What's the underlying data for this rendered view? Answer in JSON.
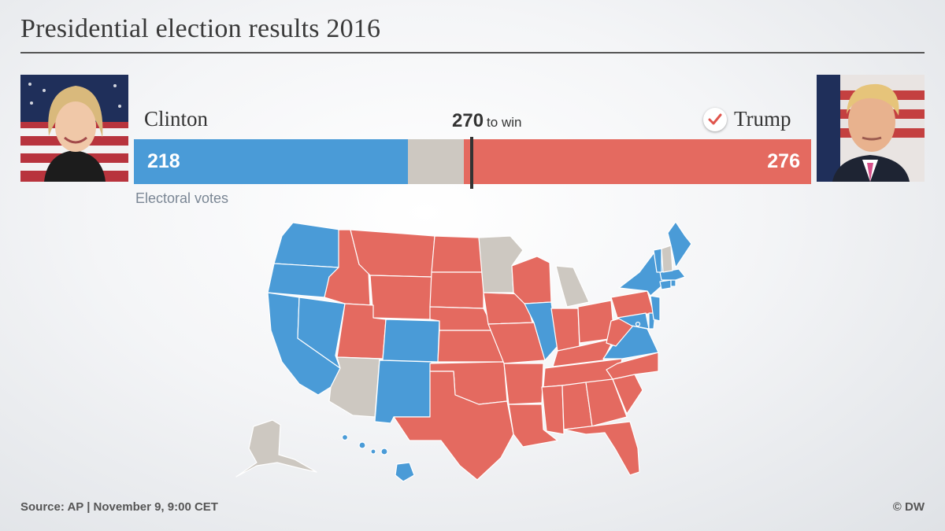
{
  "title": "Presidential election results 2016",
  "colors": {
    "democrat": "#4a9bd7",
    "republican": "#e46a60",
    "undecided": "#cdc8c1",
    "winner_check": "#e0554d"
  },
  "candidates": {
    "left": {
      "name": "Clinton",
      "electoral_votes": 218,
      "votes_label": "218",
      "photo_icon": "clinton-portrait"
    },
    "right": {
      "name": "Trump",
      "electoral_votes": 276,
      "votes_label": "276",
      "photo_icon": "trump-portrait",
      "winner": true,
      "winner_icon": "checkmark-icon"
    }
  },
  "bar": {
    "total": 538,
    "threshold": 270,
    "threshold_number": "270",
    "threshold_text": "to win",
    "axis_label": "Electoral votes"
  },
  "map": {
    "democrat": [
      "WA",
      "OR",
      "CA",
      "NV",
      "CO",
      "NM",
      "IL",
      "VA",
      "MD",
      "DE",
      "NJ",
      "NY",
      "CT",
      "RI",
      "MA",
      "VT",
      "ME",
      "HI",
      "DC"
    ],
    "republican": [
      "ID",
      "MT",
      "WY",
      "UT",
      "ND",
      "SD",
      "NE",
      "KS",
      "OK",
      "TX",
      "IA",
      "MO",
      "AR",
      "LA",
      "WI",
      "IN",
      "OH",
      "KY",
      "TN",
      "MS",
      "AL",
      "GA",
      "FL",
      "SC",
      "NC",
      "WV",
      "PA"
    ],
    "undecided": [
      "AZ",
      "MN",
      "MI",
      "NH",
      "AK"
    ]
  },
  "footer": {
    "source": "Source: AP | November 9, 9:00 CET",
    "credit": "© DW"
  }
}
